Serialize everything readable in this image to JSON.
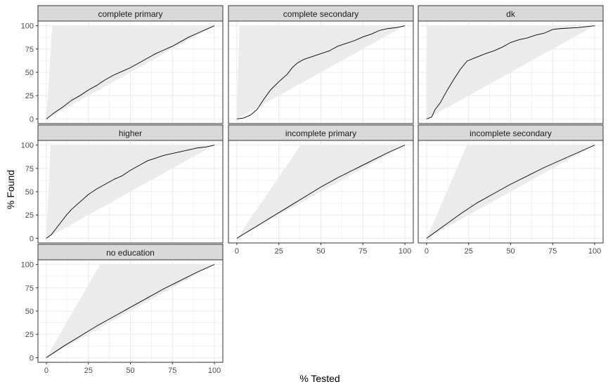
{
  "chart_data": {
    "type": "line",
    "xlabel": "% Tested",
    "ylabel": "% Found",
    "xlim": [
      -5,
      105
    ],
    "ylim": [
      -5,
      105
    ],
    "x_ticks": [
      "0",
      "25",
      "50",
      "75",
      "100"
    ],
    "y_ticks": [
      "0",
      "25",
      "50",
      "75",
      "100"
    ],
    "grid": true,
    "colors": {
      "ribbon": "#ebebeb",
      "line": "#000000",
      "strip_fill": "#d9d9d9",
      "panel_border": "#333333",
      "grid": "#ebebeb"
    },
    "panels": [
      {
        "label": "complete primary",
        "ribbon_top_x": 3.5,
        "line": [
          [
            0,
            0
          ],
          [
            5,
            7
          ],
          [
            10,
            13
          ],
          [
            15,
            20
          ],
          [
            20,
            25
          ],
          [
            25,
            31
          ],
          [
            30,
            36
          ],
          [
            35,
            42
          ],
          [
            40,
            47
          ],
          [
            45,
            51
          ],
          [
            50,
            55
          ],
          [
            55,
            60
          ],
          [
            60,
            65
          ],
          [
            65,
            70
          ],
          [
            70,
            74
          ],
          [
            75,
            78
          ],
          [
            80,
            83
          ],
          [
            85,
            88
          ],
          [
            90,
            92
          ],
          [
            95,
            96
          ],
          [
            100,
            100
          ]
        ]
      },
      {
        "label": "complete secondary",
        "ribbon_top_x": 1.5,
        "line": [
          [
            0,
            0
          ],
          [
            4,
            1
          ],
          [
            8,
            4
          ],
          [
            12,
            10
          ],
          [
            16,
            21
          ],
          [
            20,
            31
          ],
          [
            25,
            40
          ],
          [
            30,
            48
          ],
          [
            33,
            55
          ],
          [
            36,
            60
          ],
          [
            40,
            64
          ],
          [
            45,
            67
          ],
          [
            50,
            70
          ],
          [
            55,
            73
          ],
          [
            60,
            78
          ],
          [
            65,
            81
          ],
          [
            70,
            84
          ],
          [
            75,
            88
          ],
          [
            80,
            91
          ],
          [
            85,
            95
          ],
          [
            90,
            97
          ],
          [
            95,
            98
          ],
          [
            100,
            100
          ]
        ]
      },
      {
        "label": "dk",
        "ribbon_top_x": 0.5,
        "line": [
          [
            0,
            0
          ],
          [
            3,
            2
          ],
          [
            5,
            10
          ],
          [
            8,
            17
          ],
          [
            12,
            30
          ],
          [
            16,
            42
          ],
          [
            20,
            53
          ],
          [
            24,
            62
          ],
          [
            28,
            65
          ],
          [
            35,
            70
          ],
          [
            40,
            73
          ],
          [
            45,
            77
          ],
          [
            50,
            82
          ],
          [
            55,
            85
          ],
          [
            60,
            87
          ],
          [
            65,
            90
          ],
          [
            70,
            92
          ],
          [
            75,
            96
          ],
          [
            80,
            97
          ],
          [
            90,
            98
          ],
          [
            95,
            99
          ],
          [
            100,
            100
          ]
        ]
      },
      {
        "label": "higher",
        "ribbon_top_x": 2.5,
        "line": [
          [
            0,
            0
          ],
          [
            3,
            4
          ],
          [
            6,
            11
          ],
          [
            9,
            18
          ],
          [
            12,
            25
          ],
          [
            15,
            31
          ],
          [
            20,
            39
          ],
          [
            25,
            47
          ],
          [
            30,
            53
          ],
          [
            35,
            58
          ],
          [
            40,
            63
          ],
          [
            45,
            67
          ],
          [
            50,
            73
          ],
          [
            55,
            78
          ],
          [
            60,
            83
          ],
          [
            65,
            86
          ],
          [
            70,
            89
          ],
          [
            75,
            91
          ],
          [
            80,
            93
          ],
          [
            85,
            95
          ],
          [
            90,
            97
          ],
          [
            95,
            98
          ],
          [
            100,
            100
          ]
        ]
      },
      {
        "label": "incomplete primary",
        "ribbon_top_x": 38,
        "line": [
          [
            0,
            0
          ],
          [
            10,
            11
          ],
          [
            20,
            22
          ],
          [
            30,
            33
          ],
          [
            40,
            44
          ],
          [
            50,
            55
          ],
          [
            60,
            65
          ],
          [
            70,
            74
          ],
          [
            80,
            83
          ],
          [
            90,
            92
          ],
          [
            100,
            100
          ]
        ]
      },
      {
        "label": "incomplete secondary",
        "ribbon_top_x": 24,
        "line": [
          [
            0,
            0
          ],
          [
            10,
            13
          ],
          [
            20,
            26
          ],
          [
            30,
            38
          ],
          [
            40,
            48
          ],
          [
            50,
            58
          ],
          [
            60,
            67
          ],
          [
            70,
            76
          ],
          [
            80,
            84
          ],
          [
            90,
            92
          ],
          [
            100,
            100
          ]
        ]
      },
      {
        "label": "no education",
        "ribbon_top_x": 32,
        "line": [
          [
            0,
            0
          ],
          [
            10,
            12
          ],
          [
            20,
            23
          ],
          [
            30,
            34
          ],
          [
            40,
            44
          ],
          [
            50,
            54
          ],
          [
            60,
            64
          ],
          [
            70,
            74
          ],
          [
            80,
            83
          ],
          [
            90,
            92
          ],
          [
            100,
            100
          ]
        ]
      }
    ]
  }
}
